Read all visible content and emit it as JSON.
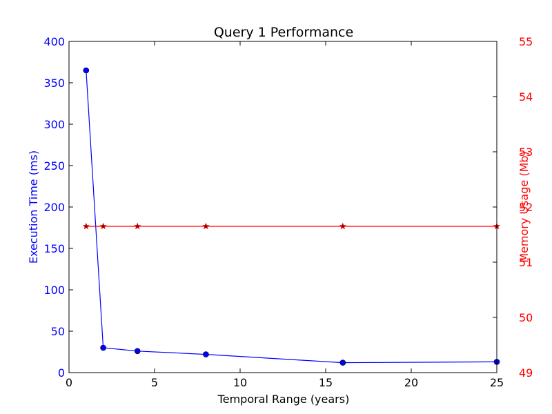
{
  "chart_data": {
    "type": "line",
    "title": "Query 1 Performance",
    "xlabel": "Temporal Range (years)",
    "xlim": [
      0,
      25
    ],
    "x_ticks": [
      "0",
      "5",
      "10",
      "15",
      "20",
      "25"
    ],
    "y_left": {
      "label": "Execution Time (ms)",
      "lim": [
        0,
        400
      ],
      "ticks": [
        "0",
        "50",
        "100",
        "150",
        "200",
        "250",
        "300",
        "350",
        "400"
      ],
      "color": "#0000ff"
    },
    "y_right": {
      "label": "Memory Usage (Mb)",
      "lim": [
        49,
        55
      ],
      "ticks": [
        "49",
        "50",
        "51",
        "52",
        "53",
        "54",
        "55"
      ],
      "color": "#ff0000"
    },
    "x": [
      1,
      2,
      4,
      8,
      16,
      25
    ],
    "series": [
      {
        "axis": "left",
        "marker": "circle",
        "color": "#0000ff",
        "values": [
          365,
          30,
          26,
          22,
          12,
          13
        ]
      },
      {
        "axis": "right",
        "marker": "star",
        "color": "#ff0000",
        "marker_fill": "#8b0000",
        "values": [
          51.65,
          51.65,
          51.65,
          51.65,
          51.65,
          51.65
        ]
      }
    ],
    "grid": false
  }
}
